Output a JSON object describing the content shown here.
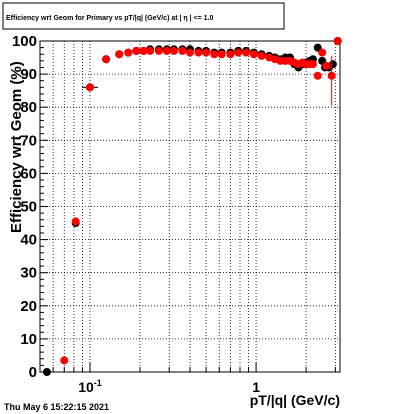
{
  "chart_data": {
    "type": "scatter",
    "title": "Efficiency wrt Geom for Primary vs pT/|q| (GeV/c) at | η | <= 1.0",
    "xlabel": "pT/|q| (GeV/c)",
    "ylabel": "Efficiency wrt Geom (%)",
    "x_scale": "log",
    "xlim": [
      0.05,
      3.2
    ],
    "ylim": [
      0,
      100
    ],
    "x_tick_labels": [
      {
        "value": 0.1,
        "label": "10",
        "exponent": "-1"
      },
      {
        "value": 1,
        "label": "1",
        "exponent": ""
      }
    ],
    "y_ticks": [
      0,
      10,
      20,
      30,
      40,
      50,
      60,
      70,
      80,
      90,
      100
    ],
    "grid": true,
    "series": [
      {
        "color": "#000000",
        "points": [
          {
            "x": 0.055,
            "y": 0
          },
          {
            "x": 0.082,
            "y": 45
          },
          {
            "x": 0.1,
            "y": 86
          },
          {
            "x": 0.125,
            "y": 94.5
          },
          {
            "x": 0.15,
            "y": 96
          },
          {
            "x": 0.17,
            "y": 96.5
          },
          {
            "x": 0.19,
            "y": 97
          },
          {
            "x": 0.21,
            "y": 97
          },
          {
            "x": 0.23,
            "y": 97.5
          },
          {
            "x": 0.26,
            "y": 97.5
          },
          {
            "x": 0.29,
            "y": 97.5
          },
          {
            "x": 0.32,
            "y": 97.5
          },
          {
            "x": 0.36,
            "y": 97.5
          },
          {
            "x": 0.4,
            "y": 97.5
          },
          {
            "x": 0.45,
            "y": 97
          },
          {
            "x": 0.5,
            "y": 97
          },
          {
            "x": 0.56,
            "y": 96.5
          },
          {
            "x": 0.62,
            "y": 96.5
          },
          {
            "x": 0.7,
            "y": 96.5
          },
          {
            "x": 0.78,
            "y": 97
          },
          {
            "x": 0.87,
            "y": 97
          },
          {
            "x": 0.97,
            "y": 96.5
          },
          {
            "x": 1.08,
            "y": 96
          },
          {
            "x": 1.2,
            "y": 95.5
          },
          {
            "x": 1.3,
            "y": 95
          },
          {
            "x": 1.4,
            "y": 94.5
          },
          {
            "x": 1.5,
            "y": 95
          },
          {
            "x": 1.6,
            "y": 95
          },
          {
            "x": 1.7,
            "y": 93
          },
          {
            "x": 1.8,
            "y": 92
          },
          {
            "x": 1.9,
            "y": 93
          },
          {
            "x": 2.0,
            "y": 93.5
          },
          {
            "x": 2.1,
            "y": 94
          },
          {
            "x": 2.2,
            "y": 94.5
          },
          {
            "x": 2.35,
            "y": 98
          },
          {
            "x": 2.5,
            "y": 94
          },
          {
            "x": 2.6,
            "y": 92
          },
          {
            "x": 2.75,
            "y": 92
          },
          {
            "x": 2.9,
            "y": 93
          },
          {
            "x": 3.1,
            "y": 100
          }
        ]
      },
      {
        "color": "#ff0000",
        "points": [
          {
            "x": 0.07,
            "y": 3.5
          },
          {
            "x": 0.082,
            "y": 45.5
          },
          {
            "x": 0.1,
            "y": 86
          },
          {
            "x": 0.125,
            "y": 94.5
          },
          {
            "x": 0.15,
            "y": 96
          },
          {
            "x": 0.17,
            "y": 96.5
          },
          {
            "x": 0.19,
            "y": 97
          },
          {
            "x": 0.21,
            "y": 97
          },
          {
            "x": 0.23,
            "y": 97
          },
          {
            "x": 0.26,
            "y": 97
          },
          {
            "x": 0.29,
            "y": 97
          },
          {
            "x": 0.32,
            "y": 97
          },
          {
            "x": 0.36,
            "y": 97
          },
          {
            "x": 0.4,
            "y": 96.5
          },
          {
            "x": 0.45,
            "y": 96.5
          },
          {
            "x": 0.5,
            "y": 96.5
          },
          {
            "x": 0.56,
            "y": 96
          },
          {
            "x": 0.62,
            "y": 96
          },
          {
            "x": 0.7,
            "y": 96
          },
          {
            "x": 0.78,
            "y": 96.5
          },
          {
            "x": 0.87,
            "y": 96.5
          },
          {
            "x": 0.97,
            "y": 96
          },
          {
            "x": 1.08,
            "y": 95.5
          },
          {
            "x": 1.2,
            "y": 95
          },
          {
            "x": 1.3,
            "y": 94.5
          },
          {
            "x": 1.4,
            "y": 94
          },
          {
            "x": 1.5,
            "y": 94
          },
          {
            "x": 1.6,
            "y": 94
          },
          {
            "x": 1.7,
            "y": 93.5
          },
          {
            "x": 1.8,
            "y": 93
          },
          {
            "x": 1.9,
            "y": 93.5
          },
          {
            "x": 2.0,
            "y": 93
          },
          {
            "x": 2.1,
            "y": 93
          },
          {
            "x": 2.2,
            "y": 93
          },
          {
            "x": 2.35,
            "y": 89.5
          },
          {
            "x": 2.5,
            "y": 96.5
          },
          {
            "x": 2.65,
            "y": 92.5
          },
          {
            "x": 2.85,
            "y": 89.5
          },
          {
            "x": 3.1,
            "y": 100
          }
        ]
      }
    ]
  },
  "footer": {
    "timestamp": "Thu May  6 15:22:15 2021"
  }
}
